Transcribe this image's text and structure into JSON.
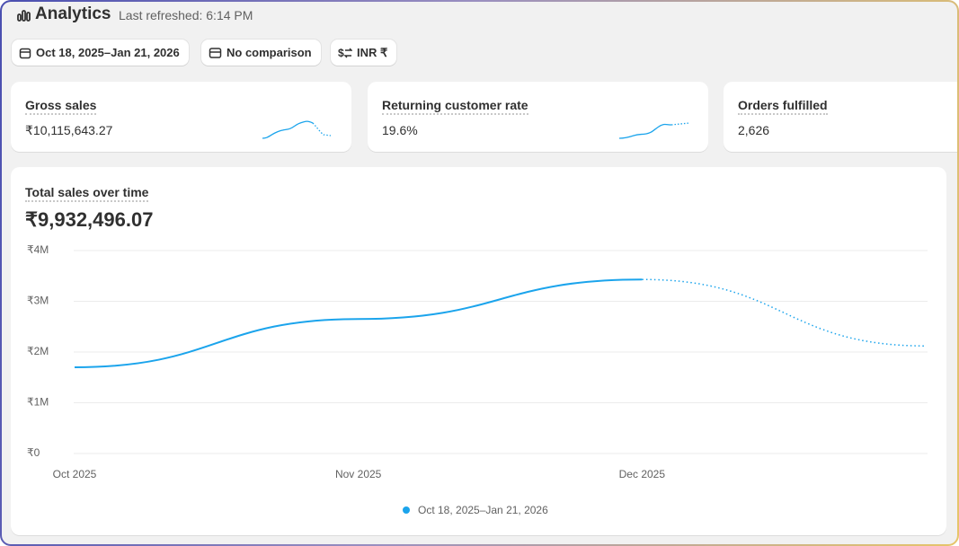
{
  "header": {
    "title": "Analytics",
    "refreshed": "Last refreshed: 6:14 PM"
  },
  "toolbar": {
    "date_range": "Oct 18, 2025–Jan 21, 2026",
    "comparison": "No comparison",
    "currency": "INR ₹"
  },
  "cards": [
    {
      "label": "Gross sales",
      "value": "₹10,115,643.27"
    },
    {
      "label": "Returning customer rate",
      "value": "19.6%"
    },
    {
      "label": "Orders fulfilled",
      "value": "2,626"
    }
  ],
  "chart_data": {
    "type": "line",
    "title": "Total sales over time",
    "total": "₹9,932,496.07",
    "categories": [
      "Oct 2025",
      "Nov 2025",
      "Dec 2025",
      null
    ],
    "series": [
      {
        "name": "Oct 18, 2025–Jan 21, 2026",
        "color": "#1ba4ec",
        "values": [
          1700000,
          2650000,
          3430000,
          2120000
        ]
      }
    ],
    "ylim": [
      0,
      4000000
    ],
    "yticks": [
      {
        "value": 0,
        "label": "₹0"
      },
      {
        "value": 1000000,
        "label": "₹1M"
      },
      {
        "value": 2000000,
        "label": "₹2M"
      },
      {
        "value": 3000000,
        "label": "₹3M"
      },
      {
        "value": 4000000,
        "label": "₹4M"
      }
    ],
    "grid": true,
    "legend": "bottom"
  }
}
